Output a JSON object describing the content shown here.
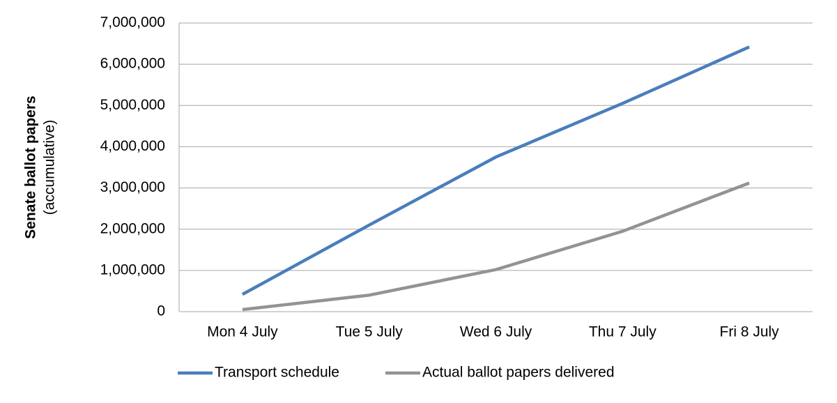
{
  "chart_data": {
    "type": "line",
    "ylabel": "Senate ballot papers",
    "ylabel_sub": "(accumulative)",
    "categories": [
      "Mon 4 July",
      "Tue 5 July",
      "Wed 6 July",
      "Thu 7 July",
      "Fri 8 July"
    ],
    "series": [
      {
        "name": "Transport schedule",
        "color": "#4a7ebb",
        "values": [
          420000,
          2100000,
          3750000,
          5050000,
          6420000
        ]
      },
      {
        "name": "Actual ballot papers delivered",
        "color": "#939393",
        "values": [
          50000,
          400000,
          1020000,
          1950000,
          3120000
        ]
      }
    ],
    "ylim": [
      0,
      7000000
    ],
    "yticks": [
      0,
      {
        "value": 1000000,
        "label": "1,000,000"
      },
      {
        "value": 2000000,
        "label": "2,000,000"
      },
      {
        "value": 3000000,
        "label": "3,000,000"
      },
      {
        "value": 4000000,
        "label": "4,000,000"
      },
      {
        "value": 5000000,
        "label": "5,000,000"
      },
      {
        "value": 6000000,
        "label": "6,000,000"
      },
      {
        "value": 7000000,
        "label": "7,000,000"
      }
    ],
    "grid": true,
    "legend": "bottom"
  }
}
